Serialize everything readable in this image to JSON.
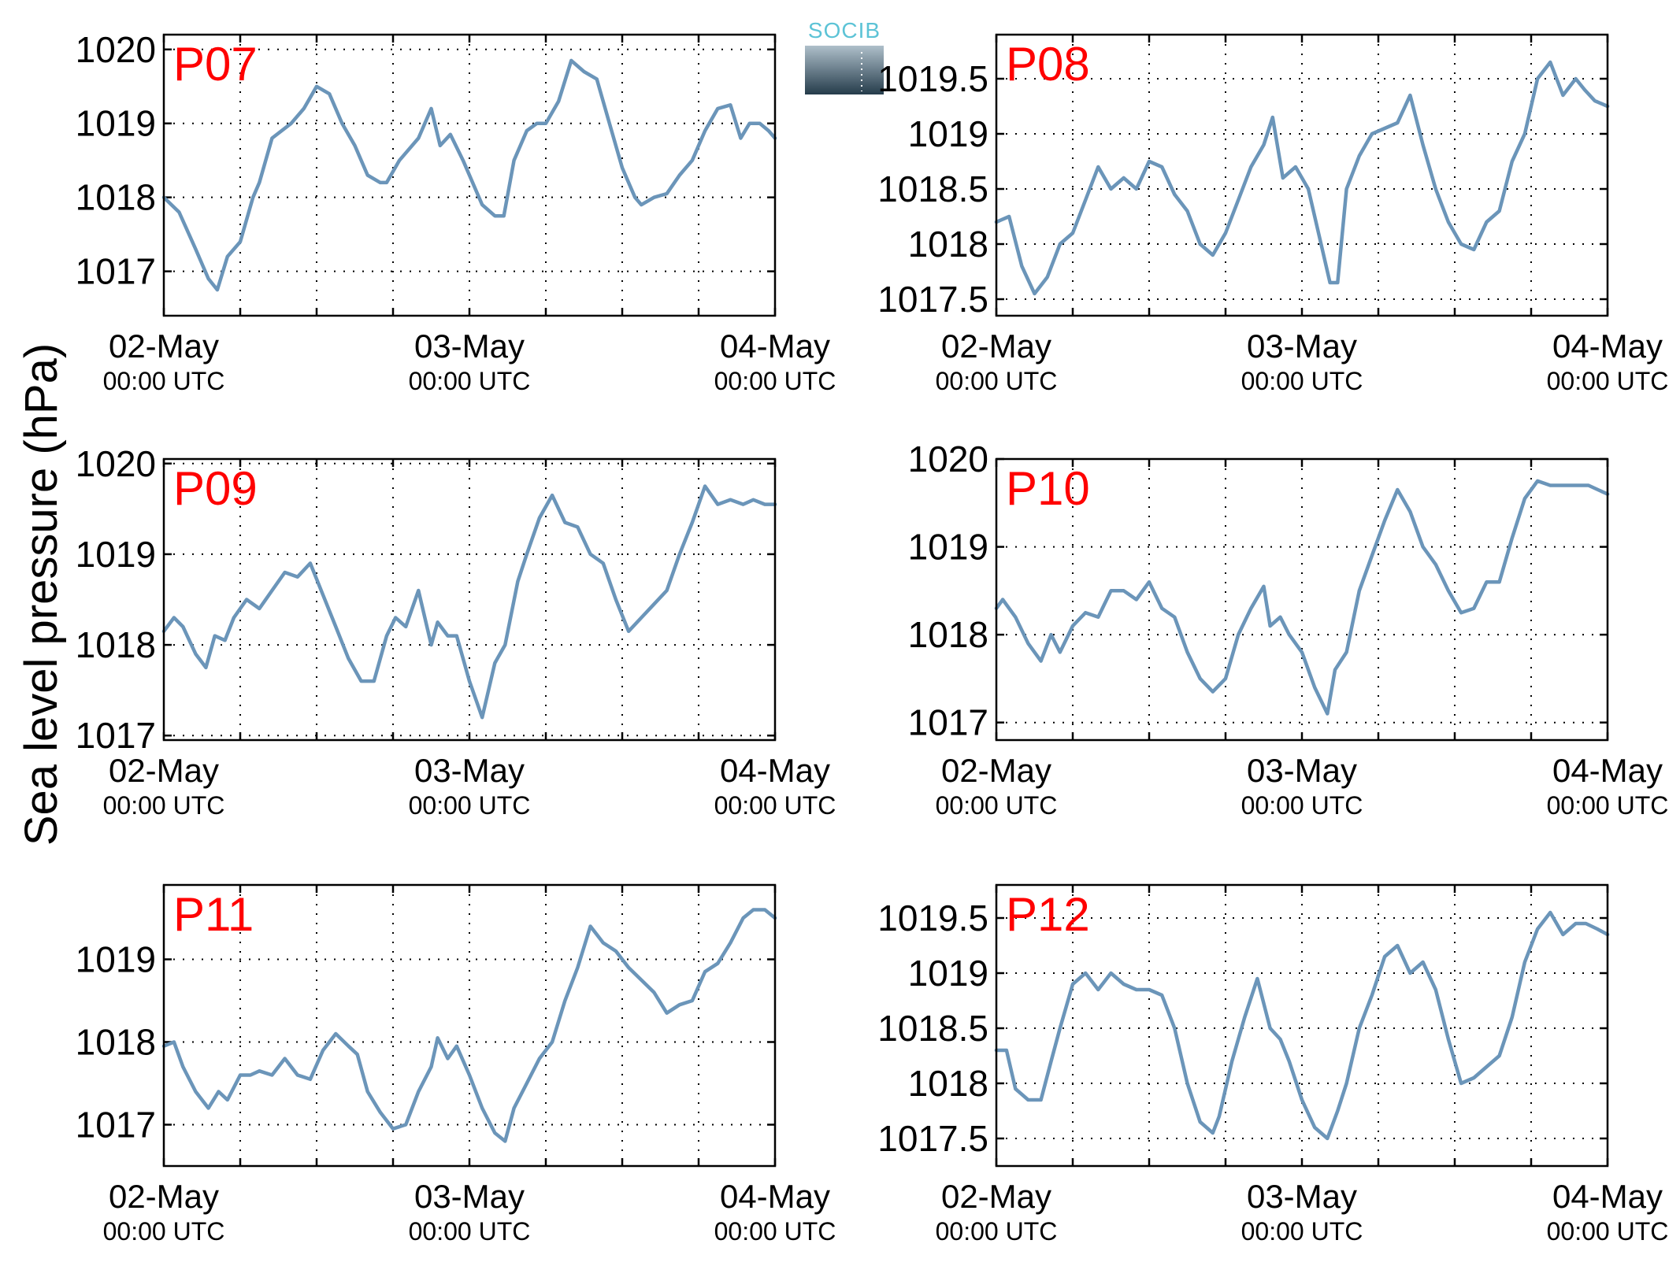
{
  "figure": {
    "ylabel": "Sea level pressure (hPa)",
    "logo": "SOCIB",
    "colors": {
      "line": "#6b95b9",
      "panel_label": "#ff0000",
      "logo_text": "#5cc3d6",
      "logo_top": "#aebfca",
      "logo_bottom": "#253c4b"
    }
  },
  "chart_data": [
    {
      "type": "line",
      "label": "P07",
      "x_ticks": [
        {
          "date": "02-May",
          "time": "00:00 UTC"
        },
        {
          "date": "03-May",
          "time": "00:00 UTC"
        },
        {
          "date": "04-May",
          "time": "00:00 UTC"
        }
      ],
      "x_grid_every_hours": 6,
      "xlim_hours": [
        0,
        48
      ],
      "ylim": [
        1016.4,
        1020.2
      ],
      "y_ticks": [
        "1017",
        "1018",
        "1019",
        "1020"
      ],
      "y_tick_values": [
        1017,
        1018,
        1019,
        1020
      ],
      "grid": true,
      "series": [
        {
          "x_hours": [
            0,
            1.2,
            2.5,
            3.5,
            4.2,
            5,
            6,
            7,
            7.5,
            8.5,
            10,
            11,
            12,
            13,
            14,
            15,
            16,
            17,
            17.5,
            18.5,
            20,
            21,
            21.7,
            22.5,
            23.5,
            25,
            26,
            26.7,
            27.5,
            28.5,
            29.3,
            30,
            31,
            32,
            33,
            34,
            35,
            36,
            37,
            37.5,
            38.5,
            39.5,
            40.5,
            41.5,
            42.5,
            43.5,
            44.5,
            45.3,
            46,
            46.8,
            47.5,
            48
          ],
          "values": [
            1018.0,
            1017.8,
            1017.3,
            1016.9,
            1016.75,
            1017.2,
            1017.4,
            1018.0,
            1018.2,
            1018.8,
            1019.0,
            1019.2,
            1019.5,
            1019.4,
            1019.0,
            1018.7,
            1018.3,
            1018.2,
            1018.2,
            1018.5,
            1018.8,
            1019.2,
            1018.7,
            1018.85,
            1018.5,
            1017.9,
            1017.75,
            1017.75,
            1018.5,
            1018.9,
            1019.0,
            1019.0,
            1019.3,
            1019.85,
            1019.7,
            1019.6,
            1019.0,
            1018.4,
            1018.0,
            1017.9,
            1018.0,
            1018.05,
            1018.3,
            1018.5,
            1018.9,
            1019.2,
            1019.25,
            1018.8,
            1019.0,
            1019.0,
            1018.9,
            1018.8
          ]
        }
      ]
    },
    {
      "type": "line",
      "label": "P08",
      "x_ticks": [
        {
          "date": "02-May",
          "time": "00:00 UTC"
        },
        {
          "date": "03-May",
          "time": "00:00 UTC"
        },
        {
          "date": "04-May",
          "time": "00:00 UTC"
        }
      ],
      "x_grid_every_hours": 6,
      "xlim_hours": [
        0,
        48
      ],
      "ylim": [
        1017.35,
        1019.9
      ],
      "y_ticks": [
        "1017.5",
        "1018",
        "1018.5",
        "1019",
        "1019.5"
      ],
      "y_tick_values": [
        1017.5,
        1018,
        1018.5,
        1019,
        1019.5
      ],
      "grid": true,
      "series": [
        {
          "x_hours": [
            0,
            1,
            2,
            3,
            4,
            5,
            6,
            7,
            8,
            9,
            10,
            11,
            12,
            13,
            14,
            15,
            16,
            17,
            18,
            19,
            20,
            21,
            21.7,
            22.5,
            23.5,
            24.5,
            25.5,
            26.2,
            26.8,
            27.5,
            28.5,
            29.5,
            30.5,
            31.5,
            32.5,
            33.5,
            34.5,
            35.5,
            36.5,
            37.5,
            38.5,
            39.5,
            40.5,
            41.5,
            42.5,
            43.5,
            44.5,
            45.5,
            46.2,
            47,
            48
          ],
          "values": [
            1018.2,
            1018.25,
            1017.8,
            1017.55,
            1017.7,
            1018.0,
            1018.1,
            1018.4,
            1018.7,
            1018.5,
            1018.6,
            1018.5,
            1018.75,
            1018.7,
            1018.45,
            1018.3,
            1018.0,
            1017.9,
            1018.1,
            1018.4,
            1018.7,
            1018.9,
            1019.15,
            1018.6,
            1018.7,
            1018.5,
            1018.0,
            1017.65,
            1017.65,
            1018.5,
            1018.8,
            1019.0,
            1019.05,
            1019.1,
            1019.35,
            1018.9,
            1018.5,
            1018.2,
            1018.0,
            1017.95,
            1018.2,
            1018.3,
            1018.75,
            1019.0,
            1019.5,
            1019.65,
            1019.35,
            1019.5,
            1019.4,
            1019.3,
            1019.25
          ]
        }
      ]
    },
    {
      "type": "line",
      "label": "P09",
      "x_ticks": [
        {
          "date": "02-May",
          "time": "00:00 UTC"
        },
        {
          "date": "03-May",
          "time": "00:00 UTC"
        },
        {
          "date": "04-May",
          "time": "00:00 UTC"
        }
      ],
      "x_grid_every_hours": 6,
      "xlim_hours": [
        0,
        48
      ],
      "ylim": [
        1016.95,
        1020.05
      ],
      "y_ticks": [
        "1017",
        "1018",
        "1019",
        "1020"
      ],
      "y_tick_values": [
        1017,
        1018,
        1019,
        1020
      ],
      "grid": true,
      "series": [
        {
          "x_hours": [
            0,
            0.8,
            1.5,
            2.5,
            3.3,
            4,
            4.8,
            5.5,
            6.5,
            7.5,
            8.5,
            9.5,
            10.5,
            11.5,
            12.5,
            13.5,
            14.5,
            15.5,
            16.5,
            17.5,
            18.2,
            19,
            20,
            21,
            21.5,
            22.3,
            23,
            24,
            25,
            26,
            26.8,
            27.8,
            28.5,
            29.5,
            30.5,
            31.5,
            32.5,
            33.5,
            34.5,
            35.5,
            36.5,
            37.5,
            38.5,
            39.5,
            40.5,
            41.5,
            42.5,
            43.5,
            44.5,
            45.5,
            46.3,
            47.2,
            48
          ],
          "values": [
            1018.15,
            1018.3,
            1018.2,
            1017.9,
            1017.75,
            1018.1,
            1018.05,
            1018.3,
            1018.5,
            1018.4,
            1018.6,
            1018.8,
            1018.75,
            1018.9,
            1018.55,
            1018.2,
            1017.85,
            1017.6,
            1017.6,
            1018.1,
            1018.3,
            1018.2,
            1018.6,
            1018.0,
            1018.25,
            1018.1,
            1018.1,
            1017.6,
            1017.2,
            1017.8,
            1018.0,
            1018.7,
            1019.0,
            1019.4,
            1019.65,
            1019.35,
            1019.3,
            1019.0,
            1018.9,
            1018.5,
            1018.15,
            1018.3,
            1018.45,
            1018.6,
            1019.0,
            1019.35,
            1019.75,
            1019.55,
            1019.6,
            1019.55,
            1019.6,
            1019.55,
            1019.55
          ]
        }
      ]
    },
    {
      "type": "line",
      "label": "P10",
      "x_ticks": [
        {
          "date": "02-May",
          "time": "00:00 UTC"
        },
        {
          "date": "03-May",
          "time": "00:00 UTC"
        },
        {
          "date": "04-May",
          "time": "00:00 UTC"
        }
      ],
      "x_grid_every_hours": 6,
      "xlim_hours": [
        0,
        48
      ],
      "ylim": [
        1016.8,
        1020.0
      ],
      "y_ticks": [
        "1017",
        "1018",
        "1019",
        "1020"
      ],
      "y_tick_values": [
        1017,
        1018,
        1019,
        1020
      ],
      "grid": true,
      "series": [
        {
          "x_hours": [
            0,
            0.5,
            1,
            1.5,
            2.5,
            3.5,
            4.3,
            5,
            6,
            7,
            8,
            9,
            10,
            11,
            12,
            13,
            14,
            15,
            16,
            17,
            18,
            19,
            20,
            21,
            21.5,
            22.3,
            23,
            24,
            25,
            26,
            26.6,
            27.5,
            28.5,
            29.5,
            30.5,
            31.5,
            32.5,
            33.5,
            34.5,
            35.5,
            36.5,
            37.5,
            38.5,
            39.5,
            40.5,
            41.5,
            42.5,
            43.5,
            44.5,
            45.5,
            46.5,
            48
          ],
          "values": [
            1018.3,
            1018.4,
            1018.3,
            1018.2,
            1017.9,
            1017.7,
            1018.0,
            1017.8,
            1018.1,
            1018.25,
            1018.2,
            1018.5,
            1018.5,
            1018.4,
            1018.6,
            1018.3,
            1018.2,
            1017.8,
            1017.5,
            1017.35,
            1017.5,
            1018.0,
            1018.3,
            1018.55,
            1018.1,
            1018.2,
            1018.0,
            1017.8,
            1017.4,
            1017.1,
            1017.6,
            1017.8,
            1018.5,
            1018.9,
            1019.3,
            1019.65,
            1019.4,
            1019.0,
            1018.8,
            1018.5,
            1018.25,
            1018.3,
            1018.6,
            1018.6,
            1019.1,
            1019.55,
            1019.75,
            1019.7,
            1019.7,
            1019.7,
            1019.7,
            1019.6
          ]
        }
      ]
    },
    {
      "type": "line",
      "label": "P11",
      "x_ticks": [
        {
          "date": "02-May",
          "time": "00:00 UTC"
        },
        {
          "date": "03-May",
          "time": "00:00 UTC"
        },
        {
          "date": "04-May",
          "time": "00:00 UTC"
        }
      ],
      "x_grid_every_hours": 6,
      "xlim_hours": [
        0,
        48
      ],
      "ylim": [
        1016.5,
        1019.9
      ],
      "y_ticks": [
        "1017",
        "1018",
        "1019"
      ],
      "y_tick_values": [
        1017,
        1018,
        1019
      ],
      "grid": true,
      "series": [
        {
          "x_hours": [
            0,
            0.8,
            1.5,
            2.5,
            3.5,
            4.3,
            5,
            6,
            6.8,
            7.5,
            8.5,
            9.5,
            10.5,
            11.5,
            12.5,
            13.5,
            14.5,
            15.2,
            16,
            17,
            18,
            19,
            20,
            21,
            21.5,
            22.3,
            23,
            24,
            25,
            26,
            26.8,
            27.5,
            28.5,
            29.5,
            30.5,
            31.5,
            32.5,
            33.5,
            34.5,
            35.5,
            36.5,
            37.5,
            38.5,
            39.5,
            40.5,
            41.5,
            42.5,
            43.5,
            44.5,
            45.5,
            46.3,
            47.2,
            48
          ],
          "values": [
            1017.95,
            1018.0,
            1017.7,
            1017.4,
            1017.2,
            1017.4,
            1017.3,
            1017.6,
            1017.6,
            1017.65,
            1017.6,
            1017.8,
            1017.6,
            1017.55,
            1017.9,
            1018.1,
            1017.95,
            1017.85,
            1017.4,
            1017.15,
            1016.95,
            1017.0,
            1017.4,
            1017.7,
            1018.05,
            1017.8,
            1017.95,
            1017.6,
            1017.2,
            1016.9,
            1016.8,
            1017.2,
            1017.5,
            1017.8,
            1018.0,
            1018.5,
            1018.9,
            1019.4,
            1019.2,
            1019.1,
            1018.9,
            1018.75,
            1018.6,
            1018.35,
            1018.45,
            1018.5,
            1018.85,
            1018.95,
            1019.2,
            1019.5,
            1019.6,
            1019.6,
            1019.5
          ]
        }
      ]
    },
    {
      "type": "line",
      "label": "P12",
      "x_ticks": [
        {
          "date": "02-May",
          "time": "00:00 UTC"
        },
        {
          "date": "03-May",
          "time": "00:00 UTC"
        },
        {
          "date": "04-May",
          "time": "00:00 UTC"
        }
      ],
      "x_grid_every_hours": 6,
      "xlim_hours": [
        0,
        48
      ],
      "ylim": [
        1017.25,
        1019.8
      ],
      "y_ticks": [
        "1017.5",
        "1018",
        "1018.5",
        "1019",
        "1019.5"
      ],
      "y_tick_values": [
        1017.5,
        1018,
        1018.5,
        1019,
        1019.5
      ],
      "grid": true,
      "series": [
        {
          "x_hours": [
            0,
            0.8,
            1.5,
            2.5,
            3.5,
            4.3,
            5,
            6,
            7,
            8,
            9,
            10,
            11,
            12,
            13,
            14,
            15,
            16,
            17,
            17.5,
            18.5,
            19.5,
            20.5,
            21.5,
            22.3,
            23,
            24,
            25,
            26,
            26.8,
            27.5,
            28.5,
            29.5,
            30.5,
            31.5,
            32.5,
            33.5,
            34.5,
            35.5,
            36.5,
            37.5,
            38.5,
            39.5,
            40.5,
            41.5,
            42.5,
            43.5,
            44.5,
            45.5,
            46.3,
            47.2,
            48
          ],
          "values": [
            1018.3,
            1018.3,
            1017.95,
            1017.85,
            1017.85,
            1018.2,
            1018.5,
            1018.9,
            1019.0,
            1018.85,
            1019.0,
            1018.9,
            1018.85,
            1018.85,
            1018.8,
            1018.5,
            1018.0,
            1017.65,
            1017.55,
            1017.7,
            1018.2,
            1018.6,
            1018.95,
            1018.5,
            1018.4,
            1018.2,
            1017.85,
            1017.6,
            1017.5,
            1017.75,
            1018.0,
            1018.5,
            1018.8,
            1019.15,
            1019.25,
            1019.0,
            1019.1,
            1018.85,
            1018.4,
            1018.0,
            1018.05,
            1018.15,
            1018.25,
            1018.6,
            1019.1,
            1019.4,
            1019.55,
            1019.35,
            1019.45,
            1019.45,
            1019.4,
            1019.35
          ]
        }
      ]
    }
  ]
}
